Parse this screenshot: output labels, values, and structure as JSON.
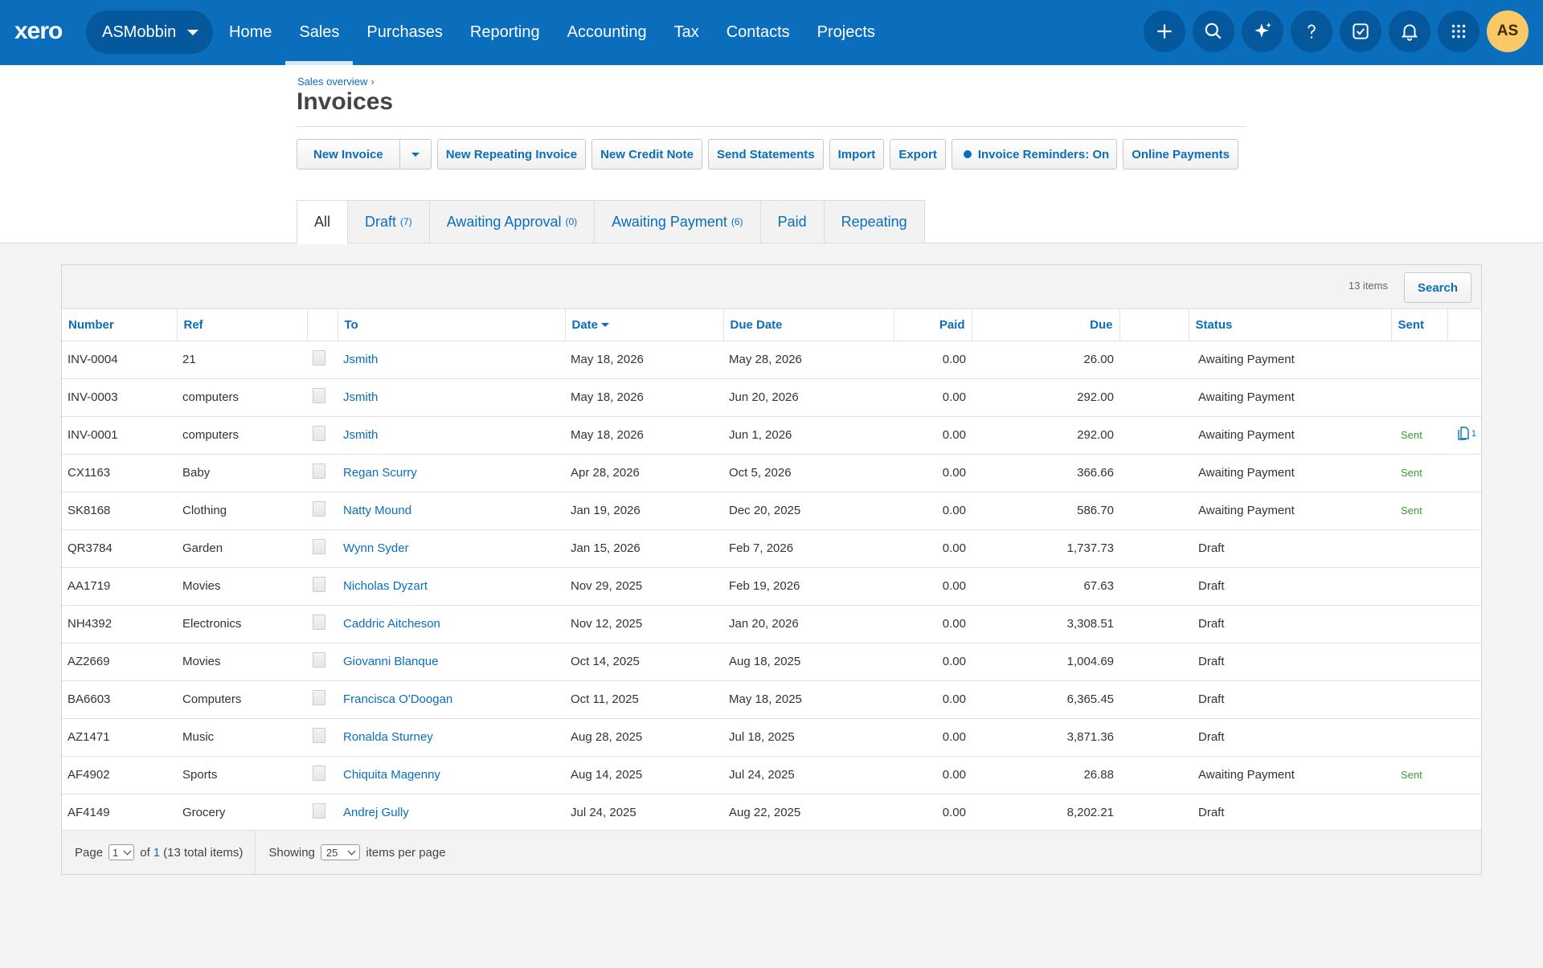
{
  "nav": {
    "logo": "xero",
    "org": "ASMobbin",
    "links": [
      "Home",
      "Sales",
      "Purchases",
      "Reporting",
      "Accounting",
      "Tax",
      "Contacts",
      "Projects"
    ],
    "active": "Sales",
    "avatar": "AS",
    "icons": [
      "plus-icon",
      "search-icon",
      "sparkle-icon",
      "help-icon",
      "task-icon",
      "bell-icon",
      "apps-grid-icon"
    ]
  },
  "header": {
    "breadcrumb": "Sales overview",
    "breadcrumb_sep": "›",
    "title": "Invoices"
  },
  "toolbar": {
    "new_invoice": "New Invoice",
    "new_repeating": "New Repeating Invoice",
    "new_credit_note": "New Credit Note",
    "send_statements": "Send Statements",
    "import": "Import",
    "export": "Export",
    "reminders": "Invoice Reminders: On",
    "online_payments": "Online Payments"
  },
  "tabs": [
    {
      "label": "All",
      "count": ""
    },
    {
      "label": "Draft",
      "count": "(7)"
    },
    {
      "label": "Awaiting Approval",
      "count": "(0)"
    },
    {
      "label": "Awaiting Payment",
      "count": "(6)"
    },
    {
      "label": "Paid",
      "count": ""
    },
    {
      "label": "Repeating",
      "count": ""
    }
  ],
  "table": {
    "items_count": "13 items",
    "search_label": "Search",
    "columns": [
      "Number",
      "Ref",
      "",
      "To",
      "Date",
      "Due Date",
      "Paid",
      "Due",
      "",
      "Status",
      "Sent",
      ""
    ],
    "rows": [
      {
        "number": "INV-0004",
        "ref": "21",
        "to": "Jsmith",
        "date": "May 18, 2026",
        "due_date": "May 28, 2026",
        "paid": "0.00",
        "due": "26.00",
        "status": "Awaiting Payment",
        "sent": "",
        "files": ""
      },
      {
        "number": "INV-0003",
        "ref": "computers",
        "to": "Jsmith",
        "date": "May 18, 2026",
        "due_date": "Jun 20, 2026",
        "paid": "0.00",
        "due": "292.00",
        "status": "Awaiting Payment",
        "sent": "",
        "files": ""
      },
      {
        "number": "INV-0001",
        "ref": "computers",
        "to": "Jsmith",
        "date": "May 18, 2026",
        "due_date": "Jun 1, 2026",
        "paid": "0.00",
        "due": "292.00",
        "status": "Awaiting Payment",
        "sent": "Sent",
        "files": "1"
      },
      {
        "number": "CX1163",
        "ref": "Baby",
        "to": "Regan Scurry",
        "date": "Apr 28, 2026",
        "due_date": "Oct 5, 2026",
        "paid": "0.00",
        "due": "366.66",
        "status": "Awaiting Payment",
        "sent": "Sent",
        "files": ""
      },
      {
        "number": "SK8168",
        "ref": "Clothing",
        "to": "Natty Mound",
        "date": "Jan 19, 2026",
        "due_date": "Dec 20, 2025",
        "paid": "0.00",
        "due": "586.70",
        "status": "Awaiting Payment",
        "sent": "Sent",
        "files": ""
      },
      {
        "number": "QR3784",
        "ref": "Garden",
        "to": "Wynn Syder",
        "date": "Jan 15, 2026",
        "due_date": "Feb 7, 2026",
        "paid": "0.00",
        "due": "1,737.73",
        "status": "Draft",
        "sent": "",
        "files": ""
      },
      {
        "number": "AA1719",
        "ref": "Movies",
        "to": "Nicholas Dyzart",
        "date": "Nov 29, 2025",
        "due_date": "Feb 19, 2026",
        "paid": "0.00",
        "due": "67.63",
        "status": "Draft",
        "sent": "",
        "files": ""
      },
      {
        "number": "NH4392",
        "ref": "Electronics",
        "to": "Caddric Aitcheson",
        "date": "Nov 12, 2025",
        "due_date": "Jan 20, 2026",
        "paid": "0.00",
        "due": "3,308.51",
        "status": "Draft",
        "sent": "",
        "files": ""
      },
      {
        "number": "AZ2669",
        "ref": "Movies",
        "to": "Giovanni Blanque",
        "date": "Oct 14, 2025",
        "due_date": "Aug 18, 2025",
        "paid": "0.00",
        "due": "1,004.69",
        "status": "Draft",
        "sent": "",
        "files": ""
      },
      {
        "number": "BA6603",
        "ref": "Computers",
        "to": "Francisca O'Doogan",
        "date": "Oct 11, 2025",
        "due_date": "May 18, 2025",
        "paid": "0.00",
        "due": "6,365.45",
        "status": "Draft",
        "sent": "",
        "files": ""
      },
      {
        "number": "AZ1471",
        "ref": "Music",
        "to": "Ronalda Sturney",
        "date": "Aug 28, 2025",
        "due_date": "Jul 18, 2025",
        "paid": "0.00",
        "due": "3,871.36",
        "status": "Draft",
        "sent": "",
        "files": ""
      },
      {
        "number": "AF4902",
        "ref": "Sports",
        "to": "Chiquita Magenny",
        "date": "Aug 14, 2025",
        "due_date": "Jul 24, 2025",
        "paid": "0.00",
        "due": "26.88",
        "status": "Awaiting Payment",
        "sent": "Sent",
        "files": ""
      },
      {
        "number": "AF4149",
        "ref": "Grocery",
        "to": "Andrej Gully",
        "date": "Jul 24, 2025",
        "due_date": "Aug 22, 2025",
        "paid": "0.00",
        "due": "8,202.21",
        "status": "Draft",
        "sent": "",
        "files": ""
      }
    ]
  },
  "footer": {
    "page_label": "Page",
    "page_value": "1",
    "of_label": "of",
    "total_pages": "1",
    "total_items": "(13 total items)",
    "showing_label": "Showing",
    "per_page": "25",
    "per_page_label": "items per page"
  },
  "colors": {
    "brand": "#0a6ebd",
    "sent": "#3a9a3a",
    "avatar": "#f9c967"
  }
}
